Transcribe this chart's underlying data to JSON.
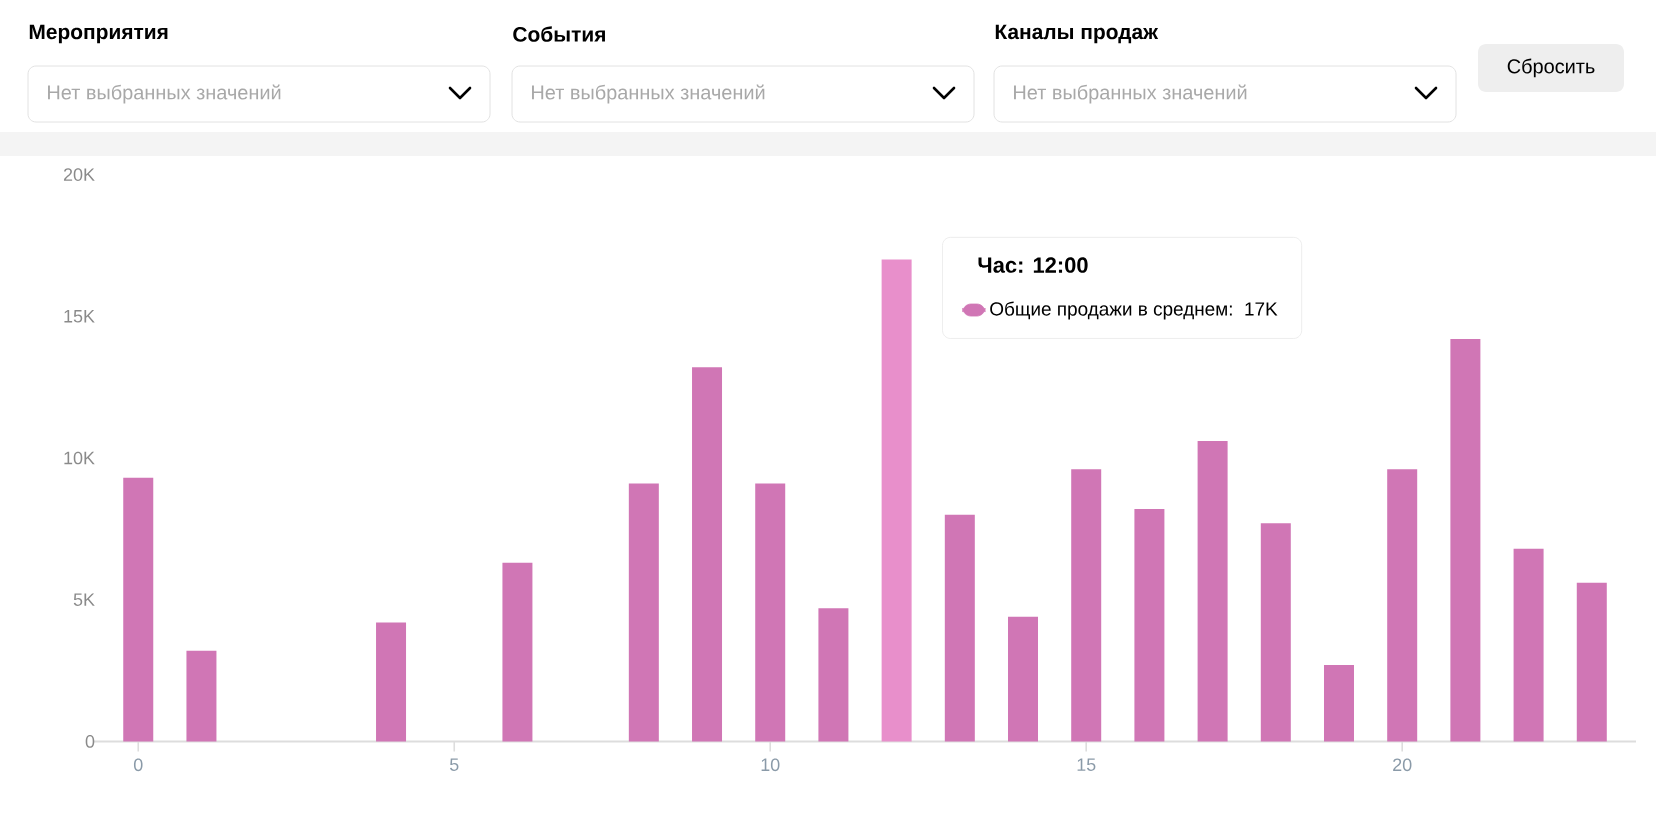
{
  "chart_data": {
    "type": "bar",
    "x": [
      0,
      1,
      2,
      3,
      4,
      5,
      6,
      7,
      8,
      9,
      10,
      11,
      12,
      13,
      14,
      15,
      16,
      17,
      18,
      19,
      20,
      21,
      22,
      23
    ],
    "series": [
      {
        "name": "Общие продажи в среднем:",
        "color": "#d076b5",
        "colors": [
          "#d076b5",
          "#d076b5",
          "#d076b5",
          "#d076b5",
          "#d076b5",
          "#d076b5",
          "#d076b5",
          "#d076b5",
          "#d076b5",
          "#d076b5",
          "#d076b5",
          "#d076b5",
          "#e88fcb",
          "#d076b5",
          "#d076b5",
          "#d076b5",
          "#d076b5",
          "#d076b5",
          "#d076b5",
          "#d076b5",
          "#d076b5",
          "#d076b5",
          "#d076b5",
          "#d076b5"
        ],
        "values": [
          9300,
          3200,
          0,
          0,
          4200,
          0,
          6300,
          0,
          9100,
          13200,
          9100,
          4700,
          17000,
          8000,
          4400,
          9600,
          8200,
          10600,
          7700,
          2700,
          9600,
          14200,
          6800,
          5600
        ]
      }
    ],
    "xlim": [
      -0.7,
      23.7
    ],
    "ylim": [
      0,
      20000
    ],
    "xticks": [
      0,
      5,
      10,
      15,
      20
    ],
    "yticks": [
      0,
      {
        "value": 5000,
        "label": "5K"
      },
      {
        "value": 10000,
        "label": "10K"
      },
      {
        "value": 15000,
        "label": "15K"
      },
      {
        "value": 20000,
        "label": "20K"
      }
    ],
    "legend": "top",
    "legend_title": "Час: 12:00",
    "annotations": [
      "Мероприятия",
      "Нет выбранных значений",
      "События",
      "Нет выбранных значений",
      "Каналы продаж",
      "Нет выбранных значений",
      "Сбросить",
      "17K"
    ]
  }
}
